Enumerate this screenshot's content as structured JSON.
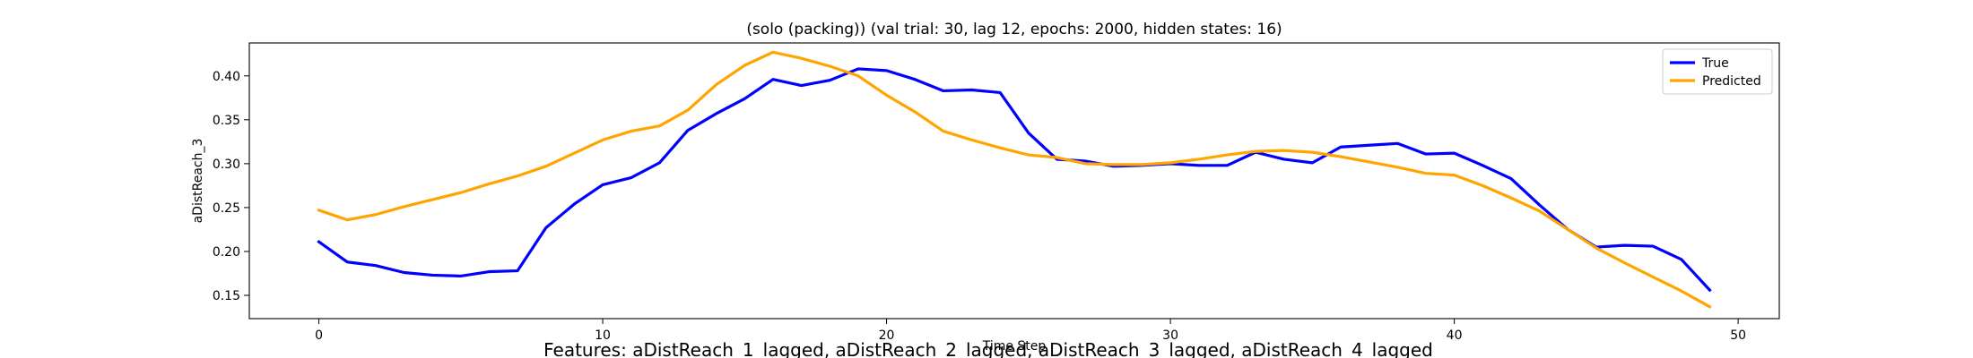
{
  "chart_data": {
    "type": "line",
    "title": "(solo (packing)) (val trial: 30, lag 12, epochs: 2000, hidden states: 16)",
    "xlabel": "Time Step",
    "ylabel": "aDistReach_3",
    "caption": "Features: aDistReach_1_lagged, aDistReach_2_lagged, aDistReach_3_lagged, aDistReach_4_lagged",
    "xlim": [
      -2.45,
      51.45
    ],
    "ylim": [
      0.1235,
      0.4375
    ],
    "xticks": [
      0,
      10,
      20,
      30,
      40,
      50
    ],
    "yticks": [
      0.15,
      0.2,
      0.25,
      0.3,
      0.35,
      0.4
    ],
    "ytick_labels": [
      "0.15",
      "0.20",
      "0.25",
      "0.30",
      "0.35",
      "0.40"
    ],
    "grid": false,
    "legend_position": "top-right",
    "x": [
      0,
      1,
      2,
      3,
      4,
      5,
      6,
      7,
      8,
      9,
      10,
      11,
      12,
      13,
      14,
      15,
      16,
      17,
      18,
      19,
      20,
      21,
      22,
      23,
      24,
      25,
      26,
      27,
      28,
      29,
      30,
      31,
      32,
      33,
      34,
      35,
      36,
      37,
      38,
      39,
      40,
      41,
      42,
      43,
      44,
      45,
      46,
      47,
      48,
      49
    ],
    "series": [
      {
        "name": "True",
        "color": "#0000ff",
        "values": [
          0.211,
          0.188,
          0.184,
          0.176,
          0.173,
          0.172,
          0.177,
          0.178,
          0.227,
          0.254,
          0.276,
          0.284,
          0.301,
          0.338,
          0.357,
          0.374,
          0.396,
          0.389,
          0.395,
          0.408,
          0.406,
          0.396,
          0.383,
          0.384,
          0.381,
          0.335,
          0.305,
          0.303,
          0.297,
          0.298,
          0.3,
          0.298,
          0.298,
          0.313,
          0.305,
          0.301,
          0.319,
          0.321,
          0.323,
          0.311,
          0.312,
          0.298,
          0.283,
          0.253,
          0.225,
          0.205,
          0.207,
          0.206,
          0.191,
          0.156
        ]
      },
      {
        "name": "Predicted",
        "color": "#ffa500",
        "values": [
          0.247,
          0.236,
          0.242,
          0.251,
          0.259,
          0.267,
          0.277,
          0.286,
          0.297,
          0.312,
          0.327,
          0.337,
          0.343,
          0.361,
          0.39,
          0.412,
          0.427,
          0.42,
          0.411,
          0.4,
          0.378,
          0.359,
          0.337,
          0.327,
          0.318,
          0.31,
          0.307,
          0.3,
          0.299,
          0.299,
          0.301,
          0.305,
          0.31,
          0.314,
          0.315,
          0.313,
          0.308,
          0.302,
          0.296,
          0.289,
          0.287,
          0.275,
          0.261,
          0.246,
          0.225,
          0.204,
          0.187,
          0.171,
          0.155,
          0.137
        ]
      }
    ]
  }
}
